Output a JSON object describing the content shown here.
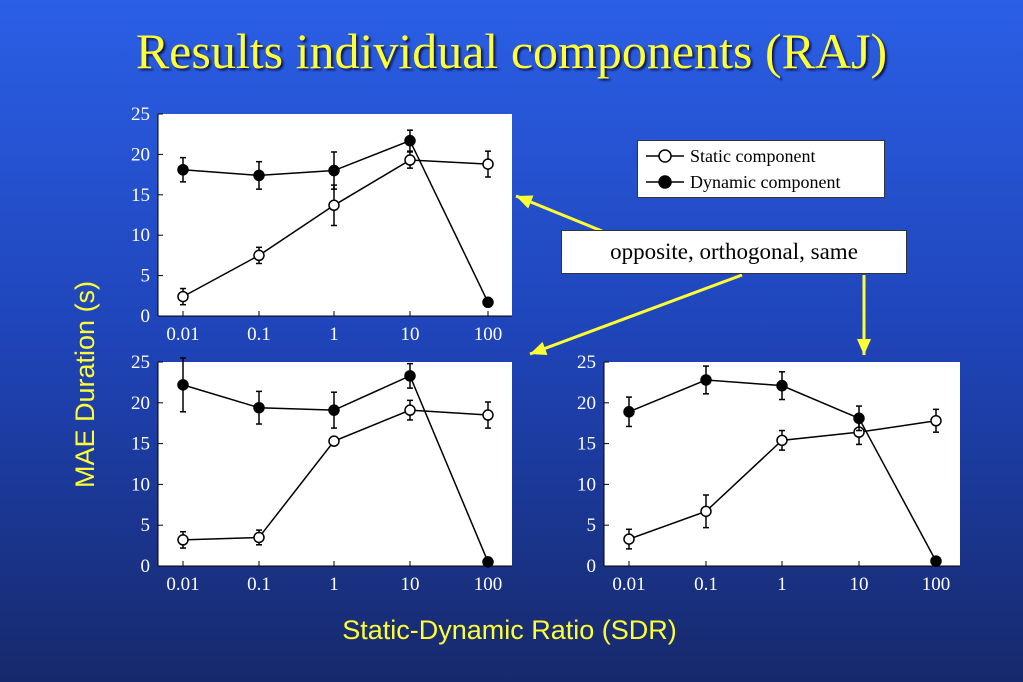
{
  "title": "Results individual components (RAJ)",
  "ylabel": "MAE Duration (s)",
  "xlabel": "Static-Dynamic Ratio (SDR)",
  "legend": {
    "static": "Static component",
    "dynamic": "Dynamic component"
  },
  "callout": "opposite, orthogonal, same",
  "colors": {
    "background_top": "#2b5fe6",
    "background_bottom": "#17296b",
    "text_yellow": "#ffff33",
    "arrow_yellow": "#ffff33",
    "plot_bg": "#ffffff",
    "series": "#000000"
  },
  "chart_data": [
    {
      "type": "line",
      "panel": "top-left",
      "x": [
        "0.01",
        "0.1",
        "1",
        "10",
        "100"
      ],
      "y_ticks": [
        0,
        5,
        10,
        15,
        20,
        25
      ],
      "ylim": [
        0,
        25
      ],
      "series": [
        {
          "name": "Static component",
          "marker": "open-circle",
          "values": [
            2.4,
            7.5,
            13.7,
            19.3,
            18.8
          ],
          "errors": [
            1.0,
            1.0,
            2.5,
            1.0,
            1.6
          ]
        },
        {
          "name": "Dynamic component",
          "marker": "filled-circle",
          "values": [
            18.1,
            17.4,
            18.0,
            21.7,
            1.7
          ],
          "errors": [
            1.5,
            1.7,
            2.3,
            1.3,
            0
          ]
        }
      ]
    },
    {
      "type": "line",
      "panel": "bottom-left",
      "x": [
        "0.01",
        "0.1",
        "1",
        "10",
        "100"
      ],
      "y_ticks": [
        0,
        5,
        10,
        15,
        20,
        25
      ],
      "ylim": [
        0,
        25
      ],
      "series": [
        {
          "name": "Static component",
          "marker": "open-circle",
          "values": [
            3.2,
            3.5,
            15.3,
            19.1,
            18.5
          ],
          "errors": [
            1.0,
            0.9,
            0,
            1.2,
            1.6
          ]
        },
        {
          "name": "Dynamic component",
          "marker": "filled-circle",
          "values": [
            22.2,
            19.4,
            19.1,
            23.3,
            0.5
          ],
          "errors": [
            3.3,
            2.0,
            2.2,
            1.5,
            0
          ]
        }
      ]
    },
    {
      "type": "line",
      "panel": "bottom-right",
      "x": [
        "0.01",
        "0.1",
        "1",
        "10",
        "100"
      ],
      "y_ticks": [
        0,
        5,
        10,
        15,
        20,
        25
      ],
      "ylim": [
        0,
        25
      ],
      "series": [
        {
          "name": "Static component",
          "marker": "open-circle",
          "values": [
            3.3,
            6.7,
            15.4,
            16.4,
            17.8
          ],
          "errors": [
            1.2,
            2.0,
            1.2,
            1.5,
            1.4
          ]
        },
        {
          "name": "Dynamic component",
          "marker": "filled-circle",
          "values": [
            18.9,
            22.8,
            22.1,
            18.1,
            0.6
          ],
          "errors": [
            1.8,
            1.7,
            1.7,
            1.5,
            0
          ]
        }
      ]
    }
  ]
}
